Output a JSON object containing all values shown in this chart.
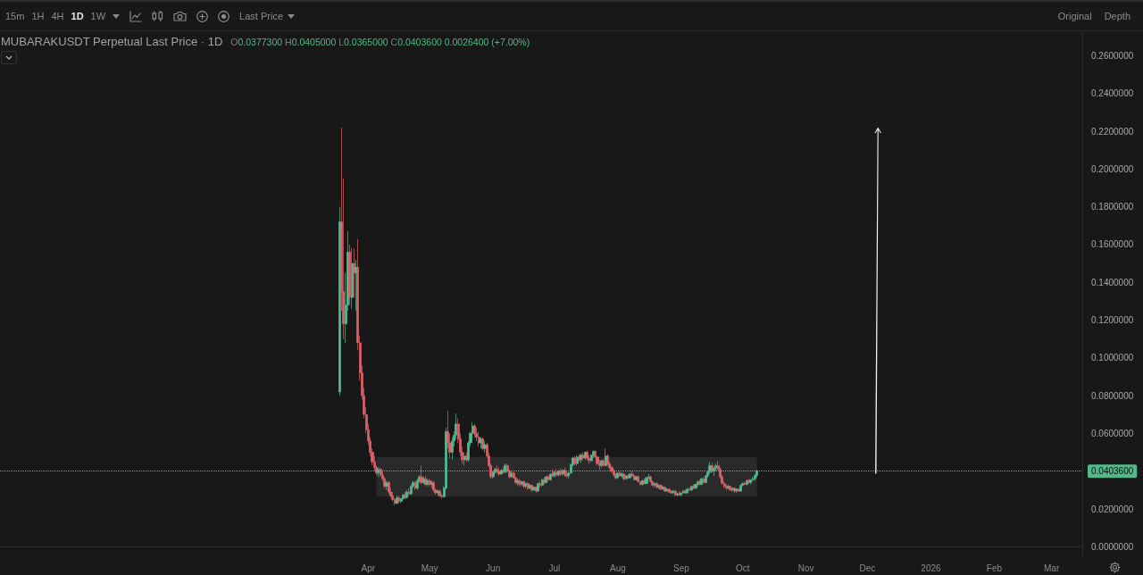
{
  "chart_data": {
    "type": "candlestick",
    "title": "MUBARAKUSDT Perpetual Last Price · 1D",
    "subtitle": "O0.0377300 H0.0405000 L0.0365000 C0.0403600 0.0026400 (+7.00%)",
    "annotations": [
      "15m",
      "1H",
      "4H",
      "1D",
      "1W",
      "Last Price",
      "Original",
      "Depth"
    ],
    "x": [
      "2025-03-18",
      "2025-03-19",
      "2025-03-20",
      "2025-03-21",
      "2025-03-22",
      "2025-03-23",
      "2025-03-24",
      "2025-03-25",
      "2025-03-26",
      "2025-03-27",
      "2025-03-28",
      "2025-03-29",
      "2025-03-30",
      "2025-03-31",
      "2025-04-01",
      "2025-04-02",
      "2025-04-03",
      "2025-04-04",
      "2025-04-05",
      "2025-04-06",
      "2025-04-07",
      "2025-04-08",
      "2025-04-09",
      "2025-04-10",
      "2025-04-11",
      "2025-04-12",
      "2025-04-13",
      "2025-04-14",
      "2025-04-15",
      "2025-04-16",
      "2025-04-17",
      "2025-04-18",
      "2025-04-19",
      "2025-04-20",
      "2025-04-21",
      "2025-04-22",
      "2025-04-23",
      "2025-04-24",
      "2025-04-25",
      "2025-04-26",
      "2025-04-27",
      "2025-04-28",
      "2025-04-29",
      "2025-04-30",
      "2025-05-01",
      "2025-05-02",
      "2025-05-03",
      "2025-05-04",
      "2025-05-05",
      "2025-05-06",
      "2025-05-07",
      "2025-05-08",
      "2025-05-09",
      "2025-05-10",
      "2025-05-11",
      "2025-05-12",
      "2025-05-13",
      "2025-05-14",
      "2025-05-15",
      "2025-05-16",
      "2025-05-17",
      "2025-05-18",
      "2025-05-19",
      "2025-05-20",
      "2025-05-21",
      "2025-05-22",
      "2025-05-23",
      "2025-05-24",
      "2025-05-25",
      "2025-05-26",
      "2025-05-27",
      "2025-05-28",
      "2025-05-29",
      "2025-05-30",
      "2025-05-31",
      "2025-06-01",
      "2025-06-02",
      "2025-06-03",
      "2025-06-04",
      "2025-06-05",
      "2025-06-06",
      "2025-06-07",
      "2025-06-08",
      "2025-06-09",
      "2025-06-10",
      "2025-06-11",
      "2025-06-12",
      "2025-06-13",
      "2025-06-14",
      "2025-06-15",
      "2025-06-16",
      "2025-06-17",
      "2025-06-18",
      "2025-06-19",
      "2025-06-20",
      "2025-06-21",
      "2025-06-22",
      "2025-06-23",
      "2025-06-24",
      "2025-06-25",
      "2025-06-26",
      "2025-06-27",
      "2025-06-28",
      "2025-06-29",
      "2025-06-30",
      "2025-07-01",
      "2025-07-02",
      "2025-07-03",
      "2025-07-04",
      "2025-07-05",
      "2025-07-06",
      "2025-07-07",
      "2025-07-08",
      "2025-07-09",
      "2025-07-10",
      "2025-07-11",
      "2025-07-12",
      "2025-07-13",
      "2025-07-14",
      "2025-07-15",
      "2025-07-16",
      "2025-07-17",
      "2025-07-18",
      "2025-07-19",
      "2025-07-20",
      "2025-07-21",
      "2025-07-22",
      "2025-07-23",
      "2025-07-24",
      "2025-07-25",
      "2025-07-26",
      "2025-07-27",
      "2025-07-28",
      "2025-07-29",
      "2025-07-30",
      "2025-07-31",
      "2025-08-01",
      "2025-08-02",
      "2025-08-03",
      "2025-08-04",
      "2025-08-05",
      "2025-08-06",
      "2025-08-07",
      "2025-08-08",
      "2025-08-09",
      "2025-08-10",
      "2025-08-11",
      "2025-08-12",
      "2025-08-13",
      "2025-08-14",
      "2025-08-15",
      "2025-08-16",
      "2025-08-17",
      "2025-08-18",
      "2025-08-19",
      "2025-08-20",
      "2025-08-21",
      "2025-08-22",
      "2025-08-23",
      "2025-08-24",
      "2025-08-25",
      "2025-08-26",
      "2025-08-27",
      "2025-08-28",
      "2025-08-29",
      "2025-08-30",
      "2025-08-31",
      "2025-09-01",
      "2025-09-02",
      "2025-09-03",
      "2025-09-04",
      "2025-09-05",
      "2025-09-06",
      "2025-09-07",
      "2025-09-08",
      "2025-09-09",
      "2025-09-10",
      "2025-09-11",
      "2025-09-12",
      "2025-09-13",
      "2025-09-14",
      "2025-09-15",
      "2025-09-16",
      "2025-09-17",
      "2025-09-18",
      "2025-09-19",
      "2025-09-20",
      "2025-09-21",
      "2025-09-22",
      "2025-09-23",
      "2025-09-24",
      "2025-09-25",
      "2025-09-26",
      "2025-09-27",
      "2025-09-28",
      "2025-09-29",
      "2025-09-30",
      "2025-10-01",
      "2025-10-02",
      "2025-10-03",
      "2025-10-04",
      "2025-10-05",
      "2025-10-06",
      "2025-10-07",
      "2025-10-08"
    ],
    "ohlc": [
      [
        0.082,
        0.18,
        0.08,
        0.172
      ],
      [
        0.172,
        0.222,
        0.125,
        0.135
      ],
      [
        0.135,
        0.195,
        0.11,
        0.118
      ],
      [
        0.118,
        0.145,
        0.108,
        0.128
      ],
      [
        0.128,
        0.167,
        0.125,
        0.156
      ],
      [
        0.156,
        0.16,
        0.128,
        0.132
      ],
      [
        0.132,
        0.158,
        0.126,
        0.15
      ],
      [
        0.15,
        0.158,
        0.132,
        0.145
      ],
      [
        0.145,
        0.152,
        0.125,
        0.148
      ],
      [
        0.148,
        0.163,
        0.104,
        0.108
      ],
      [
        0.108,
        0.112,
        0.088,
        0.092
      ],
      [
        0.092,
        0.096,
        0.078,
        0.08
      ],
      [
        0.08,
        0.084,
        0.068,
        0.07
      ],
      [
        0.07,
        0.074,
        0.06,
        0.062
      ],
      [
        0.062,
        0.065,
        0.054,
        0.056
      ],
      [
        0.056,
        0.058,
        0.048,
        0.05
      ],
      [
        0.05,
        0.052,
        0.043,
        0.045
      ],
      [
        0.045,
        0.048,
        0.04,
        0.042
      ],
      [
        0.042,
        0.043,
        0.038,
        0.039
      ],
      [
        0.039,
        0.042,
        0.037,
        0.041
      ],
      [
        0.041,
        0.042,
        0.037,
        0.038
      ],
      [
        0.038,
        0.04,
        0.035,
        0.036
      ],
      [
        0.036,
        0.037,
        0.031,
        0.032
      ],
      [
        0.032,
        0.035,
        0.03,
        0.034
      ],
      [
        0.034,
        0.035,
        0.028,
        0.029
      ],
      [
        0.029,
        0.031,
        0.026,
        0.027
      ],
      [
        0.027,
        0.029,
        0.024,
        0.025
      ],
      [
        0.025,
        0.026,
        0.022,
        0.023
      ],
      [
        0.023,
        0.027,
        0.0225,
        0.026
      ],
      [
        0.026,
        0.027,
        0.023,
        0.024
      ],
      [
        0.024,
        0.026,
        0.023,
        0.0255
      ],
      [
        0.0255,
        0.028,
        0.025,
        0.0275
      ],
      [
        0.0275,
        0.029,
        0.025,
        0.026
      ],
      [
        0.026,
        0.03,
        0.0255,
        0.029
      ],
      [
        0.029,
        0.031,
        0.027,
        0.028
      ],
      [
        0.028,
        0.033,
        0.0275,
        0.032
      ],
      [
        0.032,
        0.035,
        0.031,
        0.034
      ],
      [
        0.034,
        0.035,
        0.03,
        0.031
      ],
      [
        0.031,
        0.036,
        0.03,
        0.035
      ],
      [
        0.035,
        0.038,
        0.034,
        0.037
      ],
      [
        0.037,
        0.043,
        0.033,
        0.034
      ],
      [
        0.034,
        0.037,
        0.033,
        0.036
      ],
      [
        0.036,
        0.0375,
        0.032,
        0.033
      ],
      [
        0.033,
        0.036,
        0.032,
        0.035
      ],
      [
        0.035,
        0.036,
        0.032,
        0.033
      ],
      [
        0.033,
        0.035,
        0.031,
        0.034
      ],
      [
        0.034,
        0.035,
        0.029,
        0.03
      ],
      [
        0.03,
        0.031,
        0.0275,
        0.0285
      ],
      [
        0.0285,
        0.03,
        0.027,
        0.0295
      ],
      [
        0.0295,
        0.0305,
        0.0265,
        0.027
      ],
      [
        0.027,
        0.028,
        0.0255,
        0.0265
      ],
      [
        0.0265,
        0.032,
        0.026,
        0.031
      ],
      [
        0.031,
        0.063,
        0.0305,
        0.061
      ],
      [
        0.061,
        0.072,
        0.052,
        0.055
      ],
      [
        0.055,
        0.06,
        0.047,
        0.05
      ],
      [
        0.05,
        0.058,
        0.046,
        0.056
      ],
      [
        0.056,
        0.061,
        0.053,
        0.059
      ],
      [
        0.059,
        0.0705,
        0.057,
        0.065
      ],
      [
        0.065,
        0.068,
        0.055,
        0.057
      ],
      [
        0.057,
        0.06,
        0.048,
        0.05
      ],
      [
        0.05,
        0.053,
        0.044,
        0.046
      ],
      [
        0.046,
        0.05,
        0.043,
        0.048
      ],
      [
        0.048,
        0.05,
        0.045,
        0.046
      ],
      [
        0.046,
        0.056,
        0.045,
        0.055
      ],
      [
        0.055,
        0.061,
        0.053,
        0.06
      ],
      [
        0.06,
        0.066,
        0.058,
        0.064
      ],
      [
        0.064,
        0.065,
        0.058,
        0.06
      ],
      [
        0.06,
        0.063,
        0.056,
        0.058
      ],
      [
        0.058,
        0.061,
        0.053,
        0.055
      ],
      [
        0.055,
        0.058,
        0.052,
        0.057
      ],
      [
        0.057,
        0.058,
        0.051,
        0.052
      ],
      [
        0.052,
        0.056,
        0.05,
        0.054
      ],
      [
        0.054,
        0.055,
        0.047,
        0.048
      ],
      [
        0.048,
        0.05,
        0.042,
        0.043
      ],
      [
        0.043,
        0.044,
        0.036,
        0.037
      ],
      [
        0.037,
        0.04,
        0.036,
        0.0395
      ],
      [
        0.0395,
        0.042,
        0.0385,
        0.041
      ],
      [
        0.041,
        0.043,
        0.039,
        0.04
      ],
      [
        0.04,
        0.042,
        0.0375,
        0.0385
      ],
      [
        0.0385,
        0.041,
        0.038,
        0.0405
      ],
      [
        0.0405,
        0.042,
        0.039,
        0.0395
      ],
      [
        0.0395,
        0.044,
        0.039,
        0.043
      ],
      [
        0.043,
        0.044,
        0.039,
        0.04
      ],
      [
        0.04,
        0.041,
        0.036,
        0.037
      ],
      [
        0.037,
        0.04,
        0.0365,
        0.039
      ],
      [
        0.039,
        0.04,
        0.036,
        0.0365
      ],
      [
        0.0365,
        0.037,
        0.033,
        0.034
      ],
      [
        0.034,
        0.036,
        0.0325,
        0.035
      ],
      [
        0.035,
        0.036,
        0.032,
        0.033
      ],
      [
        0.033,
        0.035,
        0.032,
        0.0345
      ],
      [
        0.0345,
        0.035,
        0.031,
        0.032
      ],
      [
        0.032,
        0.034,
        0.031,
        0.0335
      ],
      [
        0.0335,
        0.034,
        0.03,
        0.031
      ],
      [
        0.031,
        0.033,
        0.0305,
        0.0325
      ],
      [
        0.0325,
        0.033,
        0.029,
        0.03
      ],
      [
        0.03,
        0.032,
        0.0295,
        0.0315
      ],
      [
        0.0315,
        0.032,
        0.0285,
        0.0295
      ],
      [
        0.0295,
        0.034,
        0.029,
        0.0335
      ],
      [
        0.0335,
        0.035,
        0.0315,
        0.0325
      ],
      [
        0.0325,
        0.036,
        0.032,
        0.0355
      ],
      [
        0.0355,
        0.037,
        0.033,
        0.034
      ],
      [
        0.034,
        0.0375,
        0.0335,
        0.037
      ],
      [
        0.037,
        0.038,
        0.0345,
        0.0355
      ],
      [
        0.0355,
        0.039,
        0.035,
        0.0385
      ],
      [
        0.0385,
        0.041,
        0.037,
        0.0375
      ],
      [
        0.0375,
        0.04,
        0.0365,
        0.0395
      ],
      [
        0.0395,
        0.041,
        0.037,
        0.038
      ],
      [
        0.038,
        0.0405,
        0.037,
        0.04
      ],
      [
        0.04,
        0.0415,
        0.0375,
        0.0385
      ],
      [
        0.0385,
        0.041,
        0.0375,
        0.0405
      ],
      [
        0.0405,
        0.042,
        0.037,
        0.038
      ],
      [
        0.038,
        0.04,
        0.0365,
        0.0375
      ],
      [
        0.0375,
        0.0395,
        0.036,
        0.039
      ],
      [
        0.039,
        0.044,
        0.0385,
        0.0435
      ],
      [
        0.0435,
        0.0475,
        0.0425,
        0.047
      ],
      [
        0.047,
        0.048,
        0.043,
        0.044
      ],
      [
        0.044,
        0.0485,
        0.043,
        0.0475
      ],
      [
        0.0475,
        0.049,
        0.045,
        0.046
      ],
      [
        0.046,
        0.0495,
        0.0445,
        0.0485
      ],
      [
        0.0485,
        0.05,
        0.046,
        0.047
      ],
      [
        0.047,
        0.0505,
        0.046,
        0.05
      ],
      [
        0.05,
        0.051,
        0.046,
        0.047
      ],
      [
        0.047,
        0.0485,
        0.044,
        0.0455
      ],
      [
        0.0455,
        0.049,
        0.045,
        0.0485
      ],
      [
        0.0485,
        0.051,
        0.047,
        0.0505
      ],
      [
        0.0505,
        0.051,
        0.047,
        0.0475
      ],
      [
        0.0475,
        0.048,
        0.043,
        0.044
      ],
      [
        0.044,
        0.046,
        0.0405,
        0.043
      ],
      [
        0.043,
        0.046,
        0.042,
        0.0455
      ],
      [
        0.0455,
        0.0465,
        0.0425,
        0.043
      ],
      [
        0.043,
        0.052,
        0.0425,
        0.048
      ],
      [
        0.048,
        0.049,
        0.043,
        0.044
      ],
      [
        0.044,
        0.045,
        0.041,
        0.042
      ],
      [
        0.042,
        0.043,
        0.039,
        0.04
      ],
      [
        0.04,
        0.041,
        0.037,
        0.038
      ],
      [
        0.038,
        0.039,
        0.0355,
        0.0365
      ],
      [
        0.0365,
        0.0395,
        0.036,
        0.039
      ],
      [
        0.039,
        0.04,
        0.037,
        0.0375
      ],
      [
        0.0375,
        0.0395,
        0.0365,
        0.0385
      ],
      [
        0.0385,
        0.039,
        0.035,
        0.036
      ],
      [
        0.036,
        0.038,
        0.0355,
        0.0375
      ],
      [
        0.0375,
        0.0385,
        0.036,
        0.0365
      ],
      [
        0.0365,
        0.039,
        0.036,
        0.0385
      ],
      [
        0.0385,
        0.04,
        0.037,
        0.0375
      ],
      [
        0.0375,
        0.038,
        0.035,
        0.0355
      ],
      [
        0.0355,
        0.0375,
        0.035,
        0.037
      ],
      [
        0.037,
        0.038,
        0.034,
        0.0345
      ],
      [
        0.0345,
        0.035,
        0.0325,
        0.033
      ],
      [
        0.033,
        0.0355,
        0.0325,
        0.035
      ],
      [
        0.035,
        0.036,
        0.033,
        0.0335
      ],
      [
        0.0335,
        0.037,
        0.033,
        0.0365
      ],
      [
        0.0365,
        0.0385,
        0.0355,
        0.037
      ],
      [
        0.037,
        0.0375,
        0.034,
        0.0345
      ],
      [
        0.0345,
        0.035,
        0.032,
        0.0325
      ],
      [
        0.0325,
        0.034,
        0.0315,
        0.0335
      ],
      [
        0.0335,
        0.034,
        0.031,
        0.0315
      ],
      [
        0.0315,
        0.033,
        0.0305,
        0.0325
      ],
      [
        0.0325,
        0.033,
        0.03,
        0.0305
      ],
      [
        0.0305,
        0.032,
        0.03,
        0.0315
      ],
      [
        0.0315,
        0.032,
        0.029,
        0.0295
      ],
      [
        0.0295,
        0.031,
        0.029,
        0.0305
      ],
      [
        0.0305,
        0.031,
        0.0285,
        0.029
      ],
      [
        0.029,
        0.03,
        0.028,
        0.0285
      ],
      [
        0.0285,
        0.03,
        0.028,
        0.0295
      ],
      [
        0.0295,
        0.03,
        0.027,
        0.0275
      ],
      [
        0.0275,
        0.0285,
        0.0265,
        0.028
      ],
      [
        0.028,
        0.0295,
        0.027,
        0.0275
      ],
      [
        0.0275,
        0.029,
        0.0265,
        0.0285
      ],
      [
        0.0285,
        0.03,
        0.028,
        0.0295
      ],
      [
        0.0295,
        0.0305,
        0.028,
        0.0285
      ],
      [
        0.0285,
        0.031,
        0.028,
        0.0305
      ],
      [
        0.0305,
        0.0315,
        0.0295,
        0.03
      ],
      [
        0.03,
        0.0325,
        0.0295,
        0.032
      ],
      [
        0.032,
        0.033,
        0.0305,
        0.031
      ],
      [
        0.031,
        0.0335,
        0.0305,
        0.033
      ],
      [
        0.033,
        0.035,
        0.032,
        0.0345
      ],
      [
        0.0345,
        0.0355,
        0.0325,
        0.033
      ],
      [
        0.033,
        0.0365,
        0.0325,
        0.036
      ],
      [
        0.036,
        0.037,
        0.0335,
        0.034
      ],
      [
        0.034,
        0.038,
        0.0335,
        0.0375
      ],
      [
        0.0375,
        0.04,
        0.0365,
        0.0395
      ],
      [
        0.0395,
        0.045,
        0.0385,
        0.043
      ],
      [
        0.043,
        0.0445,
        0.039,
        0.04
      ],
      [
        0.04,
        0.042,
        0.0375,
        0.0415
      ],
      [
        0.0415,
        0.044,
        0.04,
        0.043
      ],
      [
        0.043,
        0.0455,
        0.0405,
        0.041
      ],
      [
        0.041,
        0.042,
        0.036,
        0.037
      ],
      [
        0.037,
        0.038,
        0.033,
        0.0335
      ],
      [
        0.0335,
        0.035,
        0.031,
        0.032
      ],
      [
        0.032,
        0.033,
        0.03,
        0.031
      ],
      [
        0.031,
        0.033,
        0.0305,
        0.032
      ],
      [
        0.032,
        0.0325,
        0.0295,
        0.03
      ],
      [
        0.03,
        0.0315,
        0.029,
        0.031
      ],
      [
        0.031,
        0.0315,
        0.0285,
        0.0295
      ],
      [
        0.0295,
        0.031,
        0.0285,
        0.0305
      ],
      [
        0.0305,
        0.031,
        0.029,
        0.0295
      ],
      [
        0.0295,
        0.033,
        0.029,
        0.0325
      ],
      [
        0.0325,
        0.034,
        0.032,
        0.0335
      ],
      [
        0.0335,
        0.0345,
        0.0325,
        0.033
      ],
      [
        0.033,
        0.0355,
        0.0325,
        0.035
      ],
      [
        0.035,
        0.036,
        0.0335,
        0.034
      ],
      [
        0.034,
        0.0355,
        0.033,
        0.0355
      ],
      [
        0.0355,
        0.037,
        0.0345,
        0.036
      ],
      [
        0.036,
        0.0385,
        0.035,
        0.0377
      ],
      [
        0.03773,
        0.0405,
        0.0365,
        0.04036
      ]
    ],
    "xlim": [
      "2024-10-03",
      "2026-03-16"
    ],
    "xticks": [
      {
        "value": "2025-04",
        "label": "Apr"
      },
      {
        "value": "2025-05",
        "label": "May"
      },
      {
        "value": "2025-06",
        "label": "Jun"
      },
      {
        "value": "2025-07",
        "label": "Jul"
      },
      {
        "value": "2025-08",
        "label": "Aug"
      },
      {
        "value": "2025-09",
        "label": "Sep"
      },
      {
        "value": "2025-10",
        "label": "Oct"
      },
      {
        "value": "2025-11",
        "label": "Nov"
      },
      {
        "value": "2025-12",
        "label": "Dec"
      },
      {
        "value": "2026-01",
        "label": "2026"
      },
      {
        "value": "2026-02",
        "label": "Feb"
      },
      {
        "value": "2026-03",
        "label": "Mar"
      }
    ],
    "ylim": [
      -0.006,
      0.273
    ],
    "yticks": [
      {
        "value": 0,
        "label": "0.0000000"
      },
      {
        "value": 0.02,
        "label": "0.0200000"
      },
      {
        "value": 0.06,
        "label": "0.0600000"
      },
      {
        "value": 0.08,
        "label": "0.0800000"
      },
      {
        "value": 0.1,
        "label": "0.1000000"
      },
      {
        "value": 0.12,
        "label": "0.1200000"
      },
      {
        "value": 0.14,
        "label": "0.1400000"
      },
      {
        "value": 0.16,
        "label": "0.1600000"
      },
      {
        "value": 0.18,
        "label": "0.1800000"
      },
      {
        "value": 0.2,
        "label": "0.2000000"
      },
      {
        "value": 0.22,
        "label": "0.2200000"
      },
      {
        "value": 0.24,
        "label": "0.2400000"
      },
      {
        "value": 0.26,
        "label": "0.2600000"
      }
    ],
    "ref_lines": [
      {
        "axis": "y",
        "value": 0.04036,
        "label": "0.0403600",
        "color": "#52b88a",
        "line_style": "dotted"
      }
    ],
    "bands": [
      {
        "axis": "y",
        "from": 0.0265,
        "to": 0.0475,
        "color": "#2a2a2a"
      }
    ]
  }
}
